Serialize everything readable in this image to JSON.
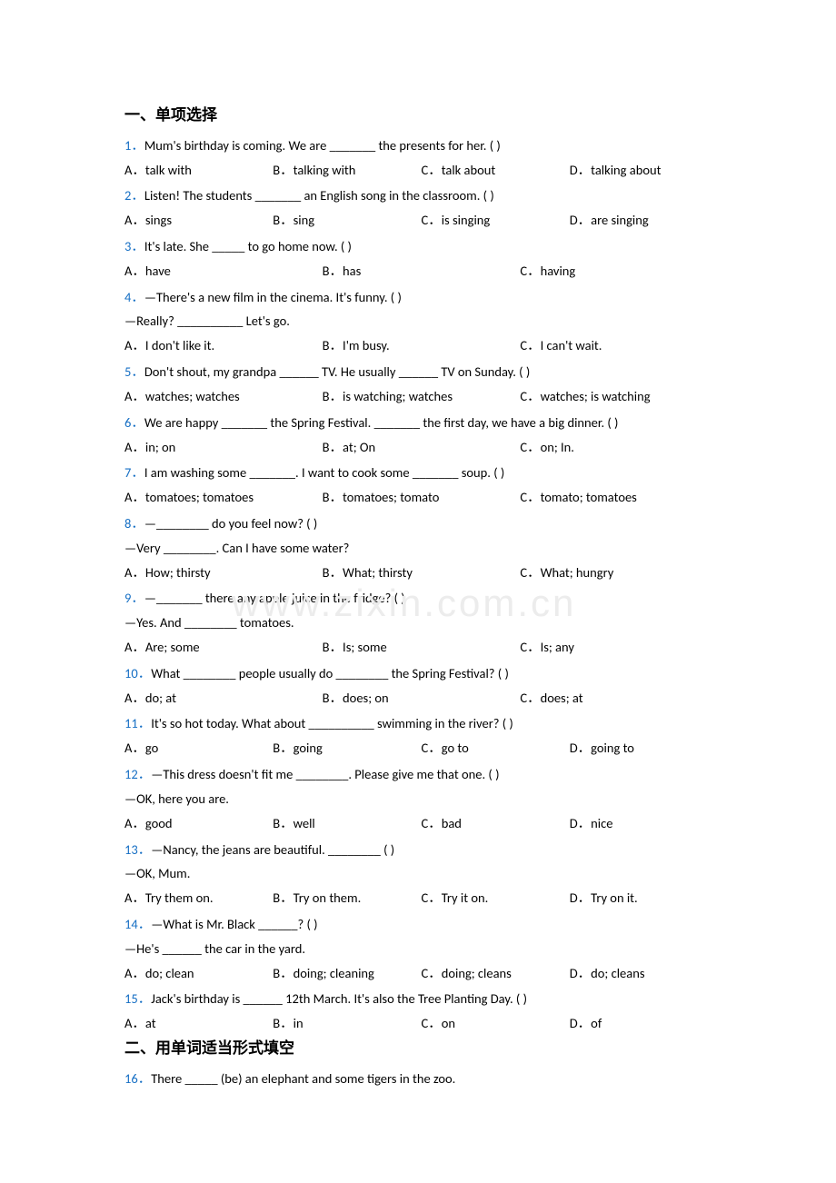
{
  "colors": {
    "qnum": "#166fc4",
    "text": "#000000",
    "background": "#ffffff",
    "watermark": "#ececec"
  },
  "typography": {
    "body_fontsize": 14.5,
    "heading_fontsize": 17,
    "watermark_fontsize": 42,
    "line_height": 1.85
  },
  "watermark": "www.zixin.com.cn",
  "sections": {
    "s1": {
      "heading": "一、单项选择"
    },
    "s2": {
      "heading": "二、用单词适当形式填空"
    }
  },
  "questions": {
    "q1": {
      "num": "1．",
      "text": "Mum's birthday is coming. We are _______ the presents for her. (     )",
      "opts": [
        "A．talk with",
        "B．talking with",
        "C．talk about",
        "D．talking about"
      ]
    },
    "q2": {
      "num": "2．",
      "text": "Listen! The students _______ an English song in the classroom. (    )",
      "opts": [
        "A．sings",
        "B．sing",
        "C．is singing",
        "D．are singing"
      ]
    },
    "q3": {
      "num": "3．",
      "text": "It's late. She _____ to go home now. (     )",
      "opts": [
        "A．have",
        "B．has",
        "C．having"
      ]
    },
    "q4": {
      "num": "4．",
      "text": "—There's a new film in the cinema. It's funny. (   )",
      "line2": "—Really? __________ Let's go.",
      "opts": [
        "A．I don't like it.",
        "B．I'm busy.",
        "C．I can't wait."
      ]
    },
    "q5": {
      "num": "5．",
      "text": "Don't shout, my grandpa ______ TV. He usually ______ TV on Sunday. (    )",
      "opts": [
        "A．watches; watches",
        "B．is watching; watches",
        "C．watches; is watching"
      ]
    },
    "q6": {
      "num": "6．",
      "text": "We are happy _______ the Spring Festival. _______ the first day, we have a big dinner. (     )",
      "opts": [
        "A．in; on",
        "B．at; On",
        "C．on; In."
      ]
    },
    "q7": {
      "num": "7．",
      "text": "I am washing some _______. I want to cook some _______ soup. (     )",
      "opts": [
        "A．tomatoes; tomatoes",
        "B．tomatoes; tomato",
        "C．tomato; tomatoes"
      ]
    },
    "q8": {
      "num": "8．",
      "text": "—________ do you feel now? (    )",
      "line2": "—Very ________. Can I have some water?",
      "opts": [
        "A．How; thirsty",
        "B．What; thirsty",
        "C．What; hungry"
      ]
    },
    "q9": {
      "num": "9．",
      "text": "—_______ there any apple juice in the fridge? (     )",
      "line2": "—Yes. And ________ tomatoes.",
      "opts": [
        "A．Are; some",
        "B．Is; some",
        "C．Is; any"
      ]
    },
    "q10": {
      "num": "10．",
      "text": "What ________ people usually do ________ the Spring Festival? (    )",
      "opts": [
        "A．do; at",
        "B．does; on",
        "C．does; at"
      ]
    },
    "q11": {
      "num": "11．",
      "text": "It's so hot today. What about __________ swimming in the river? (   )",
      "opts": [
        "A．go",
        "B．going",
        "C．go to",
        "D．going to"
      ]
    },
    "q12": {
      "num": "12．",
      "text": "—This dress doesn't fit me ________. Please give me that one. (   )",
      "line2": "—OK, here you are.",
      "opts": [
        "A．good",
        "B．well",
        "C．bad",
        "D．nice"
      ]
    },
    "q13": {
      "num": "13．",
      "text": "—Nancy, the jeans are beautiful. ________ (   )",
      "line2": "—OK, Mum.",
      "opts": [
        "A．Try them on.",
        "B．Try on them.",
        "C．Try it on.",
        "D．Try on it."
      ]
    },
    "q14": {
      "num": "14．",
      "text": "—What is Mr. Black ______? (     )",
      "line2": "—He's ______ the car in the yard.",
      "opts": [
        "A．do; clean",
        "B．doing; cleaning",
        "C．doing; cleans",
        "D．do; cleans"
      ]
    },
    "q15": {
      "num": "15．",
      "text": "Jack's birthday is ______ 12th March. It's also the Tree Planting Day. (     )",
      "opts": [
        "A．at",
        "B．in",
        "C．on",
        "D．of"
      ]
    },
    "q16": {
      "num": "16．",
      "text": "There _____ (be) an elephant and some tigers in the zoo."
    }
  }
}
